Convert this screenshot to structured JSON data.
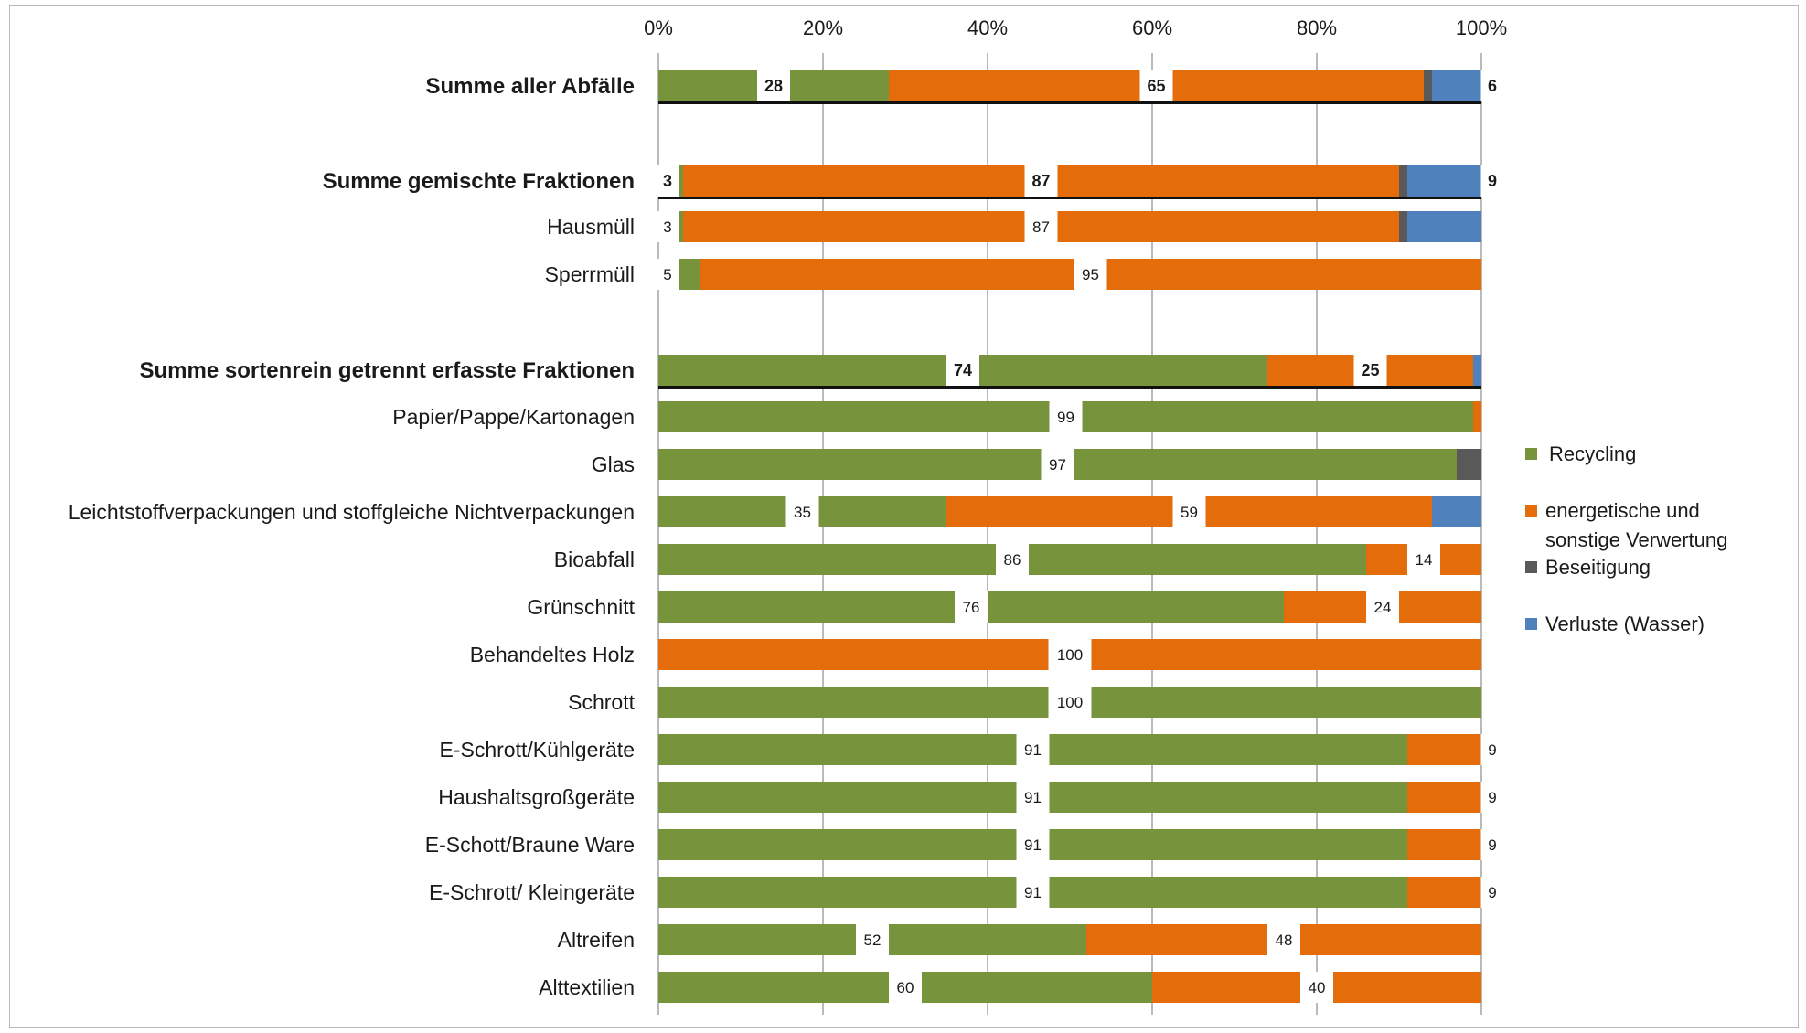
{
  "chart_data": {
    "type": "bar",
    "orientation": "horizontal",
    "stacked": "percent",
    "xlim": [
      0,
      100
    ],
    "x_ticks": [
      "0%",
      "20%",
      "40%",
      "60%",
      "80%",
      "100%"
    ],
    "grid": true,
    "legend_position": "right",
    "series": [
      {
        "name": "Recycling",
        "color": "#77933c"
      },
      {
        "name": "energetische und sonstige Verwertung",
        "color": "#e46c0a"
      },
      {
        "name": "Beseitigung",
        "color": "#595959"
      },
      {
        "name": "Verluste (Wasser)",
        "color": "#4f81bd"
      }
    ],
    "legend_lines": [
      [
        "Recycling"
      ],
      [
        "energetische und",
        "sonstige Verwertung"
      ],
      [
        "Beseitigung"
      ],
      [
        "Verluste (Wasser)"
      ]
    ],
    "categories": [
      {
        "label": "Summe aller Abfälle",
        "bold": true,
        "values": [
          28,
          65,
          1,
          6
        ],
        "data_labels": [
          "28",
          "65",
          "",
          "6"
        ]
      },
      {
        "label": "Summe gemischte Fraktionen",
        "bold": true,
        "values": [
          3,
          87,
          1,
          9
        ],
        "data_labels": [
          "3",
          "87",
          "",
          "9"
        ]
      },
      {
        "label": "Hausmüll",
        "bold": false,
        "values": [
          3,
          87,
          1,
          9
        ],
        "data_labels": [
          "3",
          "87",
          "",
          ""
        ]
      },
      {
        "label": "Sperrmüll",
        "bold": false,
        "values": [
          5,
          95,
          0,
          0
        ],
        "data_labels": [
          "5",
          "95",
          "",
          ""
        ]
      },
      {
        "label": "Summe sortenrein getrennt erfasste Fraktionen",
        "bold": true,
        "values": [
          74,
          25,
          0,
          1
        ],
        "data_labels": [
          "74",
          "25",
          "",
          ""
        ]
      },
      {
        "label": "Papier/Pappe/Kartonagen",
        "bold": false,
        "values": [
          99,
          1,
          0,
          0
        ],
        "data_labels": [
          "99",
          "",
          "",
          ""
        ]
      },
      {
        "label": "Glas",
        "bold": false,
        "values": [
          97,
          0,
          3,
          0
        ],
        "data_labels": [
          "97",
          "",
          "",
          ""
        ]
      },
      {
        "label": "Leichtstoffverpackungen und stoffgleiche Nichtverpackungen",
        "bold": false,
        "values": [
          35,
          59,
          0,
          6
        ],
        "data_labels": [
          "35",
          "59",
          "",
          ""
        ]
      },
      {
        "label": "Bioabfall",
        "bold": false,
        "values": [
          86,
          14,
          0,
          0
        ],
        "data_labels": [
          "86",
          "14",
          "",
          ""
        ]
      },
      {
        "label": "Grünschnitt",
        "bold": false,
        "values": [
          76,
          24,
          0,
          0
        ],
        "data_labels": [
          "76",
          "24",
          "",
          ""
        ]
      },
      {
        "label": "Behandeltes Holz",
        "bold": false,
        "values": [
          0,
          100,
          0,
          0
        ],
        "data_labels": [
          "",
          "100",
          "",
          ""
        ]
      },
      {
        "label": "Schrott",
        "bold": false,
        "values": [
          100,
          0,
          0,
          0
        ],
        "data_labels": [
          "100",
          "",
          "",
          ""
        ]
      },
      {
        "label": "E-Schrott/Kühlgeräte",
        "bold": false,
        "values": [
          91,
          9,
          0,
          0
        ],
        "data_labels": [
          "91",
          "9",
          "",
          ""
        ]
      },
      {
        "label": "Haushaltsgroßgeräte",
        "bold": false,
        "values": [
          91,
          9,
          0,
          0
        ],
        "data_labels": [
          "91",
          "9",
          "",
          ""
        ]
      },
      {
        "label": "E-Schott/Braune Ware",
        "bold": false,
        "values": [
          91,
          9,
          0,
          0
        ],
        "data_labels": [
          "91",
          "9",
          "",
          ""
        ]
      },
      {
        "label": "E-Schrott/ Kleingeräte",
        "bold": false,
        "values": [
          91,
          9,
          0,
          0
        ],
        "data_labels": [
          "91",
          "9",
          "",
          ""
        ]
      },
      {
        "label": "Altreifen",
        "bold": false,
        "values": [
          52,
          48,
          0,
          0
        ],
        "data_labels": [
          "52",
          "48",
          "",
          ""
        ]
      },
      {
        "label": "Alttextilien",
        "bold": false,
        "values": [
          60,
          40,
          0,
          0
        ],
        "data_labels": [
          "60",
          "40",
          "",
          ""
        ]
      }
    ]
  }
}
